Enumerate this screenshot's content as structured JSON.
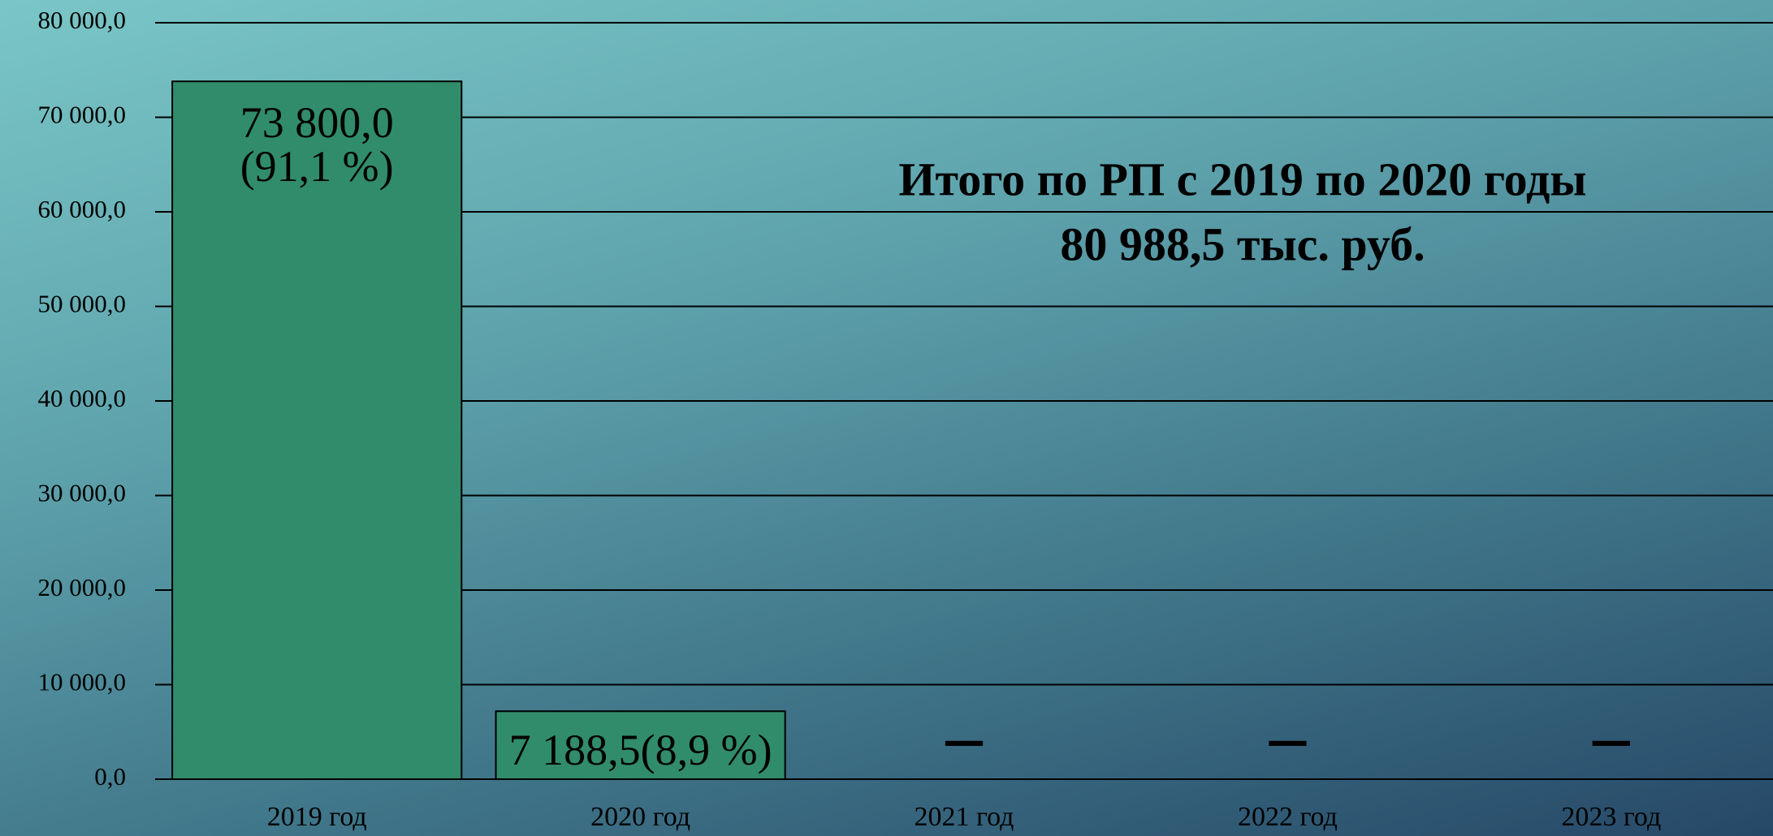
{
  "chart_data": {
    "type": "bar",
    "categories": [
      "2019 год",
      "2020 год",
      "2021 год",
      "2022 год",
      "2023 год"
    ],
    "values": [
      73800,
      7188.5,
      null,
      null,
      null
    ],
    "value_labels": [
      "73 800,0\n(91,1 %)",
      "7 188,5(8,9 %)",
      "–",
      "–",
      "–"
    ],
    "color": "#318c6c",
    "ylim": [
      0,
      80000
    ],
    "yticks": [
      {
        "value": 0,
        "label": "0,0"
      },
      {
        "value": 10000,
        "label": "10 000,0"
      },
      {
        "value": 20000,
        "label": "20 000,0"
      },
      {
        "value": 30000,
        "label": "30 000,0"
      },
      {
        "value": 40000,
        "label": "40 000,0"
      },
      {
        "value": 50000,
        "label": "50 000,0"
      },
      {
        "value": 60000,
        "label": "60 000,0"
      },
      {
        "value": 70000,
        "label": "70 000,0"
      },
      {
        "value": 80000,
        "label": "80 000,0"
      }
    ],
    "grid": true,
    "annotations": [
      "Итого по РП с 2019 по 2020 годы",
      "80 988,5 тыс. руб."
    ]
  }
}
